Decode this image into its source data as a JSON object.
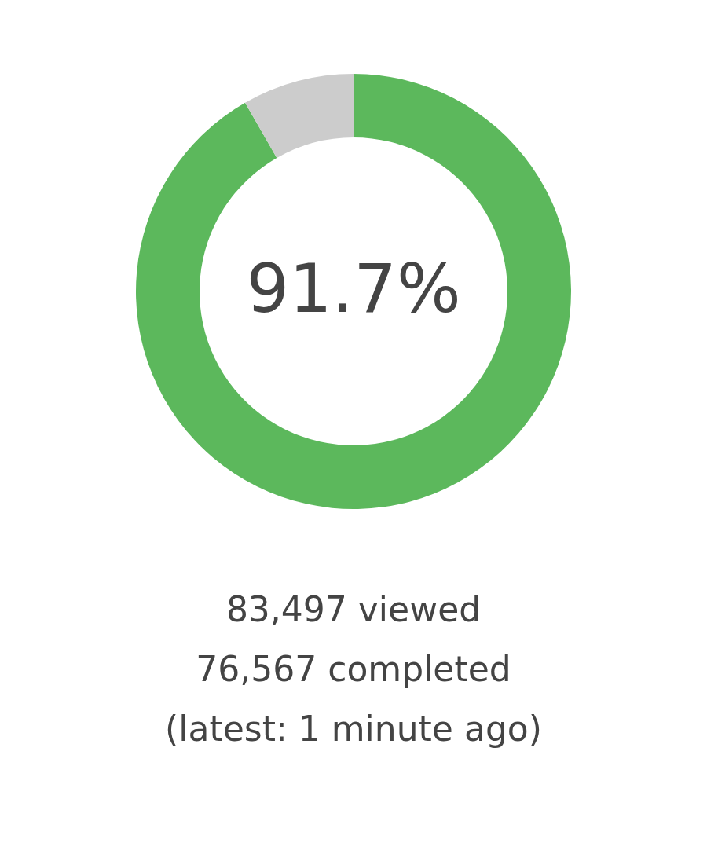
{
  "chart_data": {
    "type": "donut",
    "categories": [
      null,
      null
    ],
    "values": [
      91.7,
      8.3
    ],
    "colors": [
      "#5cb85c",
      "#cccccc"
    ],
    "value_labels": [
      "91.7%",
      null
    ],
    "annotations": [
      "83,497 viewed",
      "76,567 completed",
      "(latest: 1 minute ago)"
    ]
  }
}
